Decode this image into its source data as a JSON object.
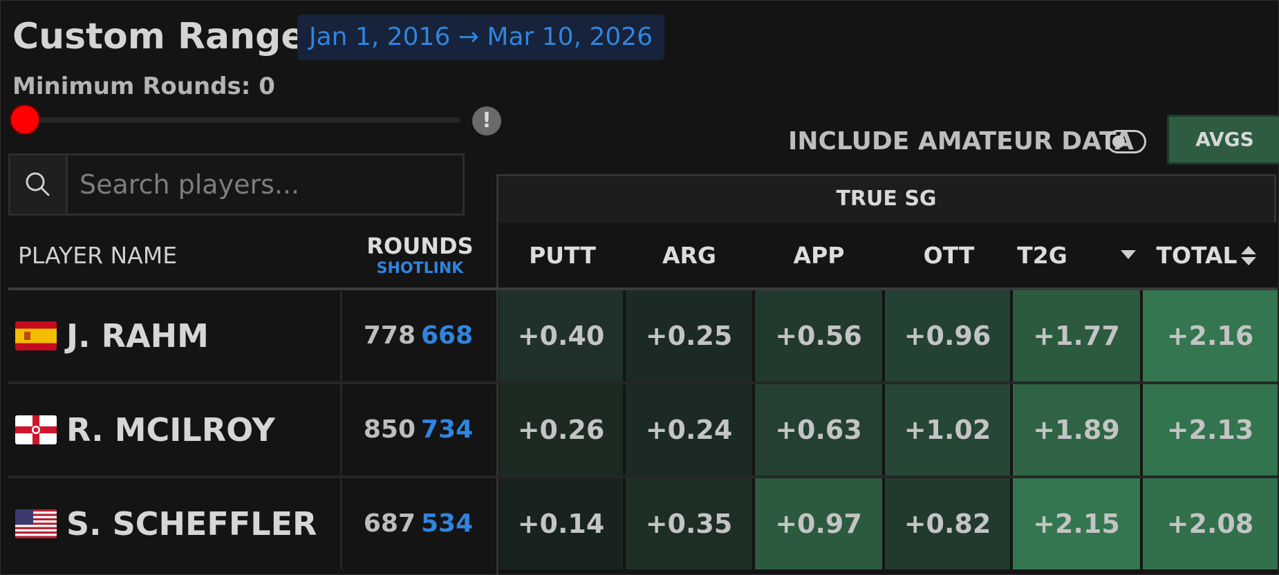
{
  "header": {
    "title": "Custom Range",
    "date_range": "Jan 1, 2016 → Mar 10, 2026",
    "min_rounds_label": "Minimum Rounds: 0",
    "min_rounds_value": 0,
    "info_glyph": "!"
  },
  "controls": {
    "amateur_label": "INCLUDE AMATEUR DATA",
    "amateur_enabled": false,
    "avgs_label": "AVGS"
  },
  "search": {
    "placeholder": "Search players..."
  },
  "table": {
    "group_header": "TRUE SG",
    "col_player": "PLAYER NAME",
    "col_rounds": "ROUNDS",
    "col_rounds_sub": "SHOTLINK",
    "stat_columns": [
      "PUTT",
      "ARG",
      "APP",
      "OTT",
      "T2G",
      "TOTAL"
    ],
    "rows": [
      {
        "flag": "spain-flag",
        "name": "J. RAHM",
        "rounds": "778",
        "shotlink": "668",
        "stats": [
          "+0.40",
          "+0.25",
          "+0.56",
          "+0.96",
          "+1.77",
          "+2.16"
        ]
      },
      {
        "flag": "northern-ireland-flag",
        "name": "R. MCILROY",
        "rounds": "850",
        "shotlink": "734",
        "stats": [
          "+0.26",
          "+0.24",
          "+0.63",
          "+1.02",
          "+1.89",
          "+2.13"
        ]
      },
      {
        "flag": "usa-flag",
        "name": "S. SCHEFFLER",
        "rounds": "687",
        "shotlink": "534",
        "stats": [
          "+0.14",
          "+0.35",
          "+0.97",
          "+0.82",
          "+2.15",
          "+2.08"
        ]
      }
    ],
    "colors": {
      "scale": [
        "#1c2a22",
        "#1f3128",
        "#223a2e",
        "#244234",
        "#285038",
        "#2f6a48",
        "#33764f"
      ]
    }
  }
}
